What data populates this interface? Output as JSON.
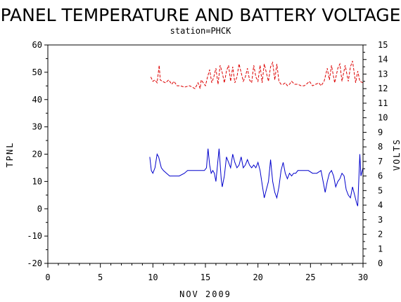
{
  "chart_data": {
    "type": "line",
    "title": "PANEL TEMPERATURE AND BATTERY VOLTAGE",
    "subtitle": "station=PHCK",
    "xlabel": "NOV 2009",
    "ylabel": "TPNL",
    "y2label": "VOLTS",
    "xlim": [
      0,
      30
    ],
    "ylim": [
      -20,
      60
    ],
    "y2lim": [
      0,
      15
    ],
    "x_ticks": [
      "0",
      "5",
      "10",
      "15",
      "20",
      "25",
      "30"
    ],
    "y_ticks": [
      "-20",
      "-10",
      "0",
      "10",
      "20",
      "30",
      "40",
      "50",
      "60"
    ],
    "y2_ticks": [
      "0",
      "1",
      "2",
      "3",
      "4",
      "5",
      "6",
      "7",
      "8",
      "9",
      "10",
      "11",
      "12",
      "13",
      "14",
      "15"
    ],
    "grid": false,
    "series": [
      {
        "axis": "left",
        "color": "#0000cc",
        "style": "solid",
        "x": [
          9.7,
          9.85,
          10.0,
          10.2,
          10.4,
          10.55,
          10.8,
          11.0,
          11.3,
          11.6,
          12.0,
          12.5,
          13.0,
          13.3,
          13.7,
          14.0,
          14.3,
          14.6,
          14.9,
          15.1,
          15.25,
          15.4,
          15.55,
          15.7,
          15.85,
          16.0,
          16.1,
          16.3,
          16.5,
          16.6,
          16.8,
          17.0,
          17.2,
          17.4,
          17.6,
          17.8,
          18.0,
          18.2,
          18.4,
          18.6,
          18.8,
          19.0,
          19.2,
          19.4,
          19.6,
          19.8,
          20.0,
          20.2,
          20.4,
          20.6,
          20.8,
          21.0,
          21.2,
          21.4,
          21.6,
          21.8,
          22.0,
          22.2,
          22.4,
          22.6,
          22.8,
          23.0,
          23.2,
          23.4,
          23.6,
          23.8,
          24.0,
          24.4,
          24.8,
          25.2,
          25.6,
          26.0,
          26.2,
          26.4,
          26.6,
          26.8,
          27.0,
          27.2,
          27.4,
          27.6,
          27.8,
          28.0,
          28.2,
          28.4,
          28.6,
          28.8,
          29.0,
          29.2,
          29.4,
          29.5,
          29.7,
          29.8,
          30.0
        ],
        "y": [
          19,
          14,
          13,
          15,
          20,
          19,
          15,
          14,
          13,
          12,
          12,
          12,
          13,
          14,
          14,
          14,
          14,
          14,
          14,
          15,
          22,
          16,
          13,
          14,
          13,
          10,
          14,
          22,
          11,
          8,
          12,
          19,
          17,
          15,
          20,
          17,
          15,
          16,
          19,
          15,
          16,
          18,
          16,
          15,
          16,
          15,
          17,
          14,
          9,
          4,
          7,
          10,
          18,
          10,
          6,
          4,
          8,
          14,
          17,
          13,
          11,
          13,
          12,
          13,
          13,
          14,
          14,
          14,
          14,
          13,
          13,
          14,
          10,
          6,
          10,
          13,
          14,
          12,
          8,
          10,
          11,
          13,
          12,
          7,
          5,
          4,
          8,
          5,
          2,
          1,
          20,
          12,
          15
        ]
      },
      {
        "axis": "right",
        "color": "#dd0000",
        "style": "dashed",
        "x": [
          9.8,
          10.0,
          10.2,
          10.4,
          10.5,
          10.6,
          10.7,
          10.9,
          11.2,
          11.5,
          11.8,
          12.0,
          12.3,
          12.6,
          13.0,
          13.5,
          14.0,
          14.3,
          14.5,
          14.6,
          14.8,
          15.0,
          15.2,
          15.4,
          15.6,
          15.8,
          16.0,
          16.2,
          16.4,
          16.6,
          16.8,
          17.0,
          17.2,
          17.4,
          17.6,
          17.8,
          18.0,
          18.2,
          18.4,
          18.6,
          18.8,
          19.0,
          19.2,
          19.4,
          19.6,
          19.8,
          20.0,
          20.2,
          20.4,
          20.6,
          20.8,
          21.0,
          21.2,
          21.4,
          21.6,
          21.8,
          22.0,
          22.2,
          22.4,
          22.6,
          22.8,
          23.0,
          23.2,
          23.5,
          23.8,
          24.1,
          24.4,
          24.6,
          24.9,
          25.2,
          25.5,
          25.8,
          26.0,
          26.3,
          26.6,
          26.8,
          27.0,
          27.3,
          27.6,
          27.8,
          28.0,
          28.3,
          28.6,
          28.8,
          29.0,
          29.3,
          29.5,
          29.7,
          30.0
        ],
        "y": [
          12.8,
          12.5,
          12.6,
          12.4,
          13.0,
          13.6,
          12.6,
          12.5,
          12.4,
          12.6,
          12.3,
          12.5,
          12.2,
          12.2,
          12.1,
          12.2,
          12.0,
          12.4,
          12.0,
          12.6,
          12.4,
          12.2,
          12.8,
          13.3,
          12.4,
          12.8,
          13.4,
          12.3,
          13.6,
          13.1,
          12.4,
          13.2,
          13.6,
          12.5,
          13.5,
          12.4,
          12.8,
          13.7,
          13.1,
          12.5,
          12.8,
          13.4,
          12.6,
          12.4,
          13.6,
          12.8,
          12.5,
          13.6,
          12.4,
          13.7,
          13.1,
          12.5,
          13.5,
          13.8,
          12.6,
          13.7,
          12.5,
          12.3,
          12.3,
          12.4,
          12.2,
          12.3,
          12.5,
          12.3,
          12.3,
          12.2,
          12.2,
          12.3,
          12.5,
          12.2,
          12.3,
          12.4,
          12.2,
          12.5,
          13.4,
          12.6,
          13.6,
          12.4,
          13.4,
          13.7,
          12.5,
          13.6,
          12.5,
          13.5,
          13.9,
          12.4,
          13.2,
          12.5,
          12.4
        ]
      }
    ]
  }
}
